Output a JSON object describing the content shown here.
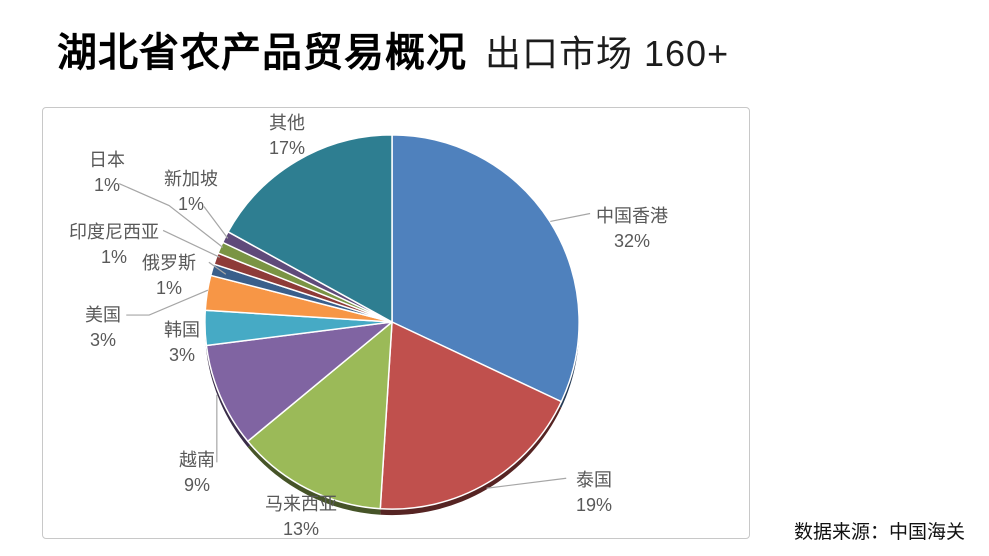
{
  "page": {
    "title_bold": "湖北省农产品贸易概况",
    "title_regular": "出口市场 160+",
    "source_note": "数据来源：中国海关"
  },
  "chart_data": {
    "type": "pie",
    "title": "湖北省农产品贸易概况 出口市场 160+",
    "unit": "%",
    "direction": "clockwise-from-top",
    "slices": [
      {
        "label": "中国香港",
        "value": 32,
        "color": "#4F81BD"
      },
      {
        "label": "泰国",
        "value": 19,
        "color": "#C0504D"
      },
      {
        "label": "马来西亚",
        "value": 13,
        "color": "#9BBA58"
      },
      {
        "label": "越南",
        "value": 9,
        "color": "#8064A2"
      },
      {
        "label": "韩国",
        "value": 3,
        "color": "#46AAC5"
      },
      {
        "label": "美国",
        "value": 3,
        "color": "#F79646"
      },
      {
        "label": "俄罗斯",
        "value": 1,
        "color": "#3A5F8B"
      },
      {
        "label": "印度尼西亚",
        "value": 1,
        "color": "#8E3B38"
      },
      {
        "label": "日本",
        "value": 1,
        "color": "#7A9444"
      },
      {
        "label": "新加坡",
        "value": 1,
        "color": "#5F4A7A"
      },
      {
        "label": "其他",
        "value": 17,
        "color": "#2E7E91"
      }
    ],
    "label_text_color": "#595959",
    "leader_line_color": "#A6A6A6",
    "slice_border_color": "#FFFFFF"
  }
}
